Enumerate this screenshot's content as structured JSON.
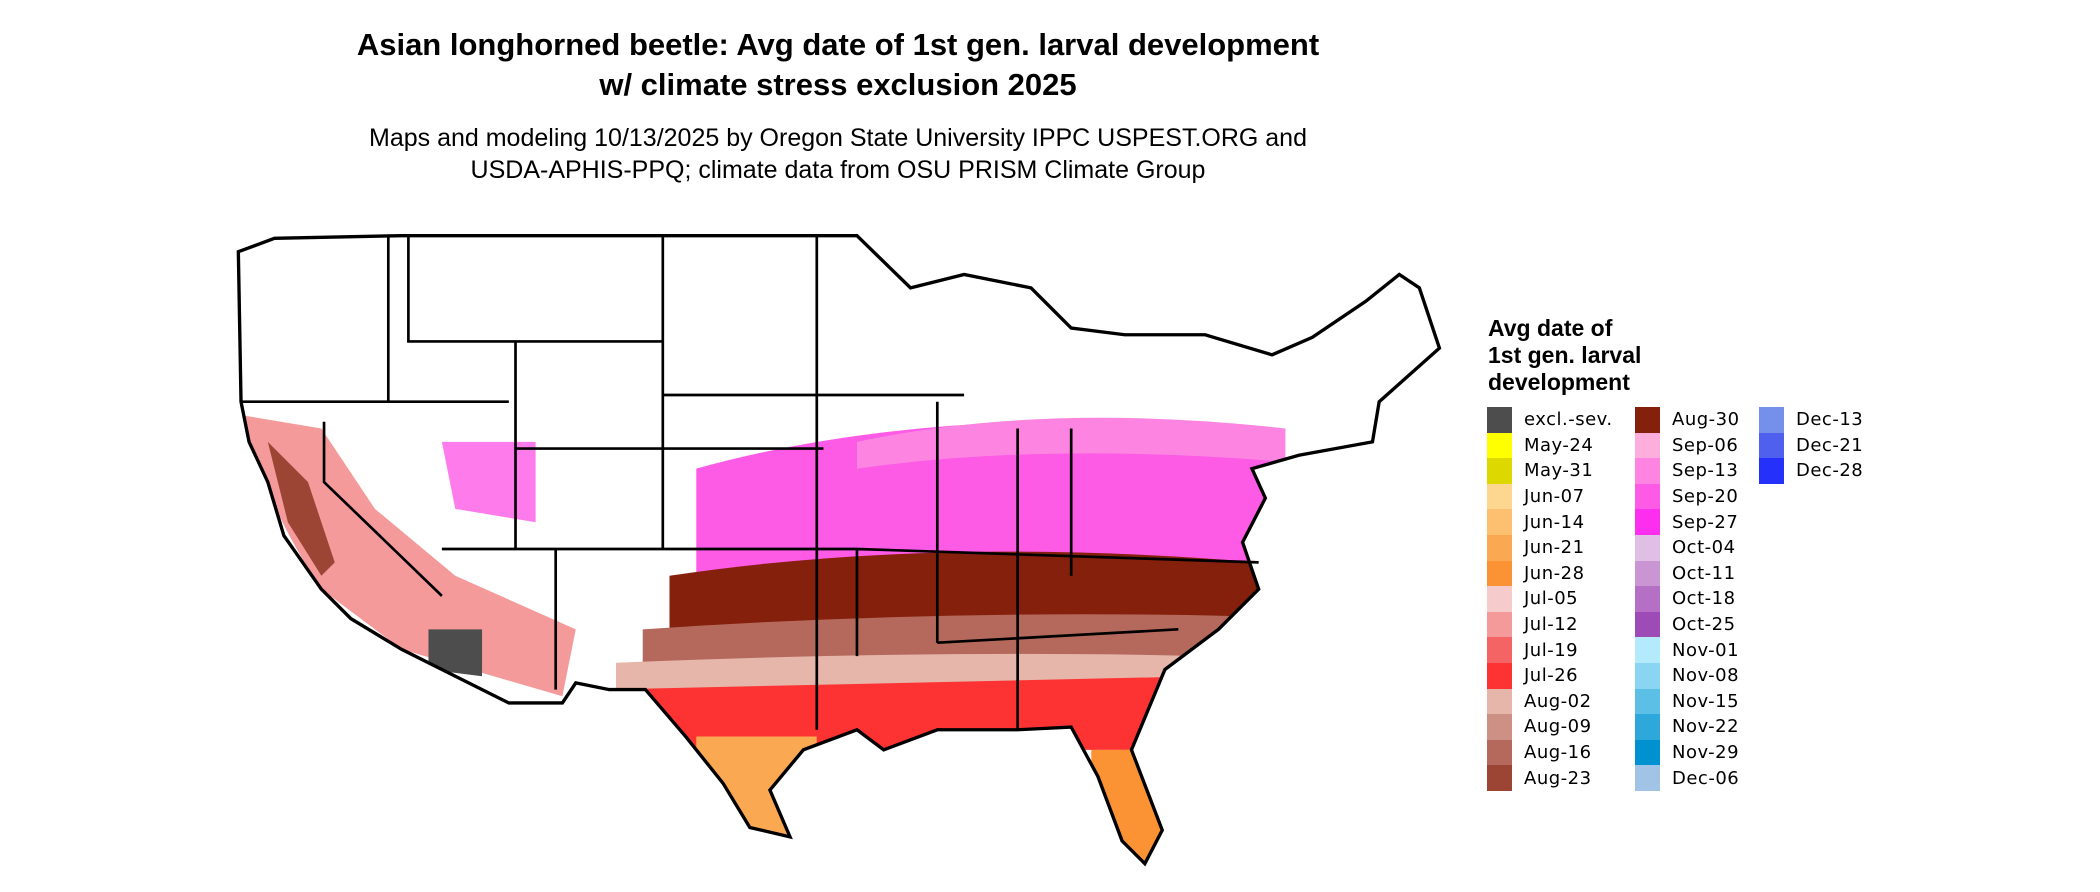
{
  "title_line1": "Asian longhorned beetle: Avg date of 1st gen. larval development",
  "title_line2": "w/ climate stress exclusion 2025",
  "subtitle_line1": "Maps and modeling 10/13/2025 by Oregon State University IPPC USPEST.ORG and",
  "subtitle_line2": "USDA-APHIS-PPQ; climate data from OSU PRISM Climate Group",
  "legend": {
    "title_lines": [
      "Avg date of",
      "1st gen. larval",
      "development"
    ],
    "columns": [
      [
        {
          "label": "excl.-sev.",
          "color": "#4d4d4d"
        },
        {
          "label": "May-24",
          "color": "#ffff00"
        },
        {
          "label": "May-31",
          "color": "#dcd800"
        },
        {
          "label": "Jun-07",
          "color": "#fdd68f"
        },
        {
          "label": "Jun-14",
          "color": "#fdbf70"
        },
        {
          "label": "Jun-21",
          "color": "#fba852"
        },
        {
          "label": "Jun-28",
          "color": "#fb9233"
        },
        {
          "label": "Jul-05",
          "color": "#f5cccb"
        },
        {
          "label": "Jul-12",
          "color": "#f49a9a"
        },
        {
          "label": "Jul-19",
          "color": "#f46464"
        },
        {
          "label": "Jul-26",
          "color": "#fd3333"
        },
        {
          "label": "Aug-02",
          "color": "#e6b6ab"
        },
        {
          "label": "Aug-09",
          "color": "#cc9084"
        },
        {
          "label": "Aug-16",
          "color": "#b4695c"
        },
        {
          "label": "Aug-23",
          "color": "#9c4534"
        }
      ],
      [
        {
          "label": "Aug-30",
          "color": "#84200c"
        },
        {
          "label": "Sep-06",
          "color": "#fdaedc"
        },
        {
          "label": "Sep-13",
          "color": "#fd85e1"
        },
        {
          "label": "Sep-20",
          "color": "#fd5ae6"
        },
        {
          "label": "Sep-27",
          "color": "#fd2eed"
        },
        {
          "label": "Oct-04",
          "color": "#e0bfe5"
        },
        {
          "label": "Oct-11",
          "color": "#ca95d3"
        },
        {
          "label": "Oct-18",
          "color": "#b570c5"
        },
        {
          "label": "Oct-25",
          "color": "#9d4bb6"
        },
        {
          "label": "Nov-01",
          "color": "#b3ebfd"
        },
        {
          "label": "Nov-08",
          "color": "#8ad6f2"
        },
        {
          "label": "Nov-15",
          "color": "#5cbfe6"
        },
        {
          "label": "Nov-22",
          "color": "#2ea8da"
        },
        {
          "label": "Nov-29",
          "color": "#0091d0"
        },
        {
          "label": "Dec-06",
          "color": "#a1c4e6"
        }
      ],
      [
        {
          "label": "Dec-13",
          "color": "#7590ea"
        },
        {
          "label": "Dec-21",
          "color": "#5060ee"
        },
        {
          "label": "Dec-28",
          "color": "#2630fb"
        }
      ]
    ]
  }
}
